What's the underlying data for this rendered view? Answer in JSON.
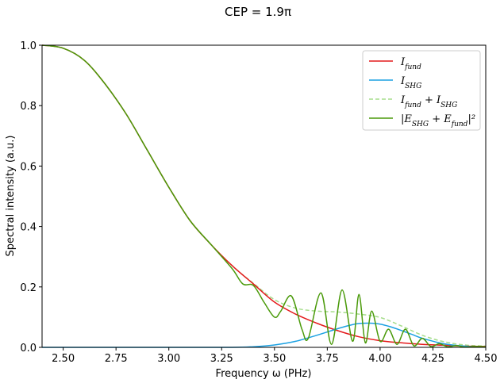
{
  "chart_data": {
    "type": "line",
    "title": "CEP = 1.9π",
    "xlabel": "Frequency ω (PHz)",
    "ylabel": "Spectral intensity (a.u.)",
    "xlim": [
      2.4,
      4.5
    ],
    "ylim": [
      0.0,
      1.0
    ],
    "xticks": [
      "2.50",
      "2.75",
      "3.00",
      "3.25",
      "3.50",
      "3.75",
      "4.00",
      "4.25",
      "4.50"
    ],
    "yticks": [
      "0.0",
      "0.2",
      "0.4",
      "0.6",
      "0.8",
      "1.0"
    ],
    "grid": false,
    "legend_position": "top-right",
    "series": [
      {
        "name": "I_fund",
        "color": "#e41a1c",
        "style": "solid",
        "x": [
          2.4,
          2.5,
          2.6,
          2.7,
          2.8,
          2.9,
          3.0,
          3.1,
          3.2,
          3.3,
          3.4,
          3.5,
          3.6,
          3.7,
          3.8,
          3.9,
          4.0,
          4.1,
          4.2,
          4.3,
          4.4,
          4.5
        ],
        "y": [
          1.0,
          0.99,
          0.95,
          0.87,
          0.77,
          0.65,
          0.53,
          0.42,
          0.34,
          0.27,
          0.21,
          0.15,
          0.11,
          0.08,
          0.055,
          0.035,
          0.022,
          0.015,
          0.01,
          0.007,
          0.004,
          0.003
        ]
      },
      {
        "name": "I_SHG",
        "color": "#1ba1e2",
        "style": "solid",
        "x": [
          2.4,
          3.0,
          3.3,
          3.4,
          3.5,
          3.6,
          3.7,
          3.8,
          3.85,
          3.9,
          3.95,
          4.0,
          4.05,
          4.1,
          4.15,
          4.2,
          4.3,
          4.4,
          4.5
        ],
        "y": [
          0.0,
          0.0,
          0.0,
          0.002,
          0.008,
          0.02,
          0.04,
          0.062,
          0.072,
          0.079,
          0.08,
          0.077,
          0.068,
          0.056,
          0.043,
          0.03,
          0.012,
          0.004,
          0.001
        ]
      },
      {
        "name": "I_fund + I_SHG",
        "color": "#a6dd8c",
        "style": "dashed",
        "x": [
          2.4,
          2.5,
          2.6,
          2.7,
          2.8,
          2.9,
          3.0,
          3.1,
          3.2,
          3.3,
          3.4,
          3.5,
          3.6,
          3.7,
          3.8,
          3.9,
          4.0,
          4.1,
          4.2,
          4.3,
          4.4,
          4.5
        ],
        "y": [
          1.0,
          0.99,
          0.95,
          0.87,
          0.77,
          0.65,
          0.53,
          0.42,
          0.34,
          0.27,
          0.212,
          0.158,
          0.13,
          0.12,
          0.117,
          0.11,
          0.099,
          0.071,
          0.04,
          0.019,
          0.008,
          0.004
        ]
      },
      {
        "name": "|E_SHG + E_fund|²",
        "color": "#4a9a0a",
        "style": "solid",
        "x": [
          2.4,
          2.5,
          2.6,
          2.7,
          2.8,
          2.9,
          3.0,
          3.1,
          3.2,
          3.3,
          3.35,
          3.4,
          3.45,
          3.5,
          3.53,
          3.58,
          3.63,
          3.66,
          3.72,
          3.77,
          3.82,
          3.87,
          3.9,
          3.93,
          3.96,
          4.0,
          4.04,
          4.08,
          4.12,
          4.16,
          4.2,
          4.24,
          4.28,
          4.32,
          4.36,
          4.4,
          4.45,
          4.5
        ],
        "y": [
          1.0,
          0.99,
          0.95,
          0.87,
          0.77,
          0.65,
          0.53,
          0.42,
          0.34,
          0.26,
          0.21,
          0.205,
          0.15,
          0.1,
          0.12,
          0.17,
          0.06,
          0.03,
          0.18,
          0.01,
          0.19,
          0.02,
          0.175,
          0.015,
          0.12,
          0.02,
          0.06,
          0.01,
          0.06,
          0.005,
          0.03,
          0.003,
          0.012,
          0.002,
          0.006,
          0.001,
          0.003,
          0.002
        ]
      }
    ]
  },
  "legend": {
    "entries": [
      {
        "base": "I",
        "sub": "fund"
      },
      {
        "base": "I",
        "sub": "SHG"
      },
      {
        "base": "I",
        "sub": "fund",
        "plus": " + I",
        "sub2": "SHG"
      },
      {
        "text": "|E",
        "sub": "SHG",
        "plus": " + E",
        "sub2": "fund",
        "tail": "|²"
      }
    ]
  }
}
